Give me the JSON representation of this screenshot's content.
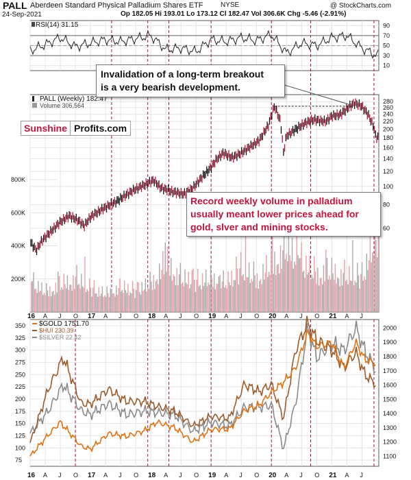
{
  "header": {
    "ticker": "PALL",
    "description": "Aberdeen Standard Physical Palladium Shares ETF",
    "exchange": "NYSE",
    "date": "24-Sep-2021",
    "ohlc": "Op 182.05 Hi 193.01 Lo 173.12 Cl 182.47 Vol 306.6K Chg -5.46 (-2.91%)",
    "source": "@ StockCharts.com"
  },
  "logo": {
    "part1": "Sunshine",
    "part2": "Profits.com",
    "part1_color": "#c0143c"
  },
  "annotations": [
    "Invalidation of a long-term breakout",
    "is a very bearish development.",
    "Record weekly volume in palladium",
    "usually meant lower prices ahead for",
    "gold, slver and mining stocks."
  ],
  "colors": {
    "event_line": "#9b1055",
    "price_up": "#111111",
    "price_down": "#c0143c",
    "vol_up": "#aaaaaa",
    "vol_down": "#e8a0a8",
    "gold": "#e07010",
    "hui": "#9a5a2a",
    "silver": "#8a8a8a"
  },
  "x_ticks": [
    "16",
    "A",
    "J",
    "O",
    "17",
    "A",
    "J",
    "O",
    "18",
    "A",
    "J",
    "O",
    "19",
    "A",
    "J",
    "O",
    "20",
    "A",
    "J",
    "O",
    "21",
    "A",
    "J"
  ],
  "x_ticks_bottom": [
    "16",
    "A",
    "J",
    "O",
    "17",
    "A",
    "J",
    "O",
    "18",
    "A",
    "J",
    "O",
    "19",
    "A",
    "J",
    "O",
    "20",
    "A",
    "J",
    "O",
    "21",
    "A",
    "J"
  ],
  "chart_data": [
    {
      "type": "line",
      "title": "RSI(14) 31.15",
      "ylim": [
        0,
        100
      ],
      "y_ticks": [
        "90",
        "70",
        "50",
        "30",
        "10"
      ],
      "grid": true,
      "x": [
        2016.0,
        2016.25,
        2016.5,
        2016.75,
        2017.0,
        2017.25,
        2017.5,
        2017.75,
        2018.0,
        2018.25,
        2018.5,
        2018.75,
        2019.0,
        2019.25,
        2019.5,
        2019.75,
        2020.0,
        2020.25,
        2020.5,
        2020.75,
        2021.0,
        2021.25,
        2021.5,
        2021.73
      ],
      "values": [
        40,
        52,
        66,
        48,
        55,
        62,
        58,
        64,
        70,
        42,
        45,
        38,
        62,
        58,
        66,
        60,
        72,
        35,
        55,
        50,
        66,
        70,
        45,
        31
      ],
      "reference_levels": [
        70,
        30
      ]
    },
    {
      "type": "line",
      "title": "PALL (Weekly) 182.47",
      "subtitle": "Volume 306,564",
      "y_ticks_price": [
        "280",
        "260",
        "240",
        "220",
        "200",
        "180",
        "160",
        "140",
        "120",
        "100",
        "80",
        "60"
      ],
      "y_ticks_volume": [
        "800K",
        "600K",
        "400K",
        "200K"
      ],
      "series": [
        {
          "name": "PALL (Weekly)",
          "x": [
            2016.0,
            2016.1,
            2016.2,
            2016.35,
            2016.5,
            2016.65,
            2016.8,
            2016.9,
            2017.0,
            2017.2,
            2017.45,
            2017.7,
            2017.9,
            2018.05,
            2018.15,
            2018.35,
            2018.55,
            2018.7,
            2018.85,
            2019.0,
            2019.1,
            2019.2,
            2019.35,
            2019.5,
            2019.65,
            2019.8,
            2019.95,
            2020.05,
            2020.15,
            2020.2,
            2020.25,
            2020.4,
            2020.55,
            2020.7,
            2020.9,
            2021.0,
            2021.15,
            2021.3,
            2021.38,
            2021.5,
            2021.6,
            2021.7,
            2021.73
          ],
          "values": [
            51,
            46,
            52,
            58,
            65,
            70,
            66,
            62,
            69,
            76,
            84,
            95,
            102,
            108,
            99,
            94,
            91,
            98,
            112,
            126,
            140,
            150,
            142,
            150,
            162,
            175,
            210,
            265,
            220,
            150,
            185,
            200,
            215,
            225,
            220,
            235,
            240,
            265,
            275,
            265,
            240,
            205,
            182
          ]
        },
        {
          "name": "Volume",
          "x": [
            2016.0,
            2016.25,
            2016.5,
            2016.75,
            2017.0,
            2017.25,
            2017.5,
            2017.75,
            2018.0,
            2018.25,
            2018.5,
            2018.75,
            2019.0,
            2019.25,
            2019.5,
            2019.75,
            2020.0,
            2020.25,
            2020.5,
            2020.75,
            2021.0,
            2021.25,
            2021.5,
            2021.7
          ],
          "values": [
            260000,
            180000,
            240000,
            300000,
            200000,
            160000,
            220000,
            180000,
            260000,
            440000,
            300000,
            260000,
            300000,
            260000,
            380000,
            300000,
            420000,
            580000,
            420000,
            340000,
            360000,
            320000,
            300000,
            640000
          ]
        }
      ],
      "events": [
        2017.35,
        2017.95,
        2018.3,
        2019.0,
        2020.0,
        2020.65,
        2021.7
      ]
    },
    {
      "type": "line",
      "series": [
        {
          "name": "$GOLD 1751.70",
          "x": [
            2016.0,
            2016.3,
            2016.5,
            2016.85,
            2017.0,
            2017.3,
            2017.6,
            2017.9,
            2018.1,
            2018.4,
            2018.7,
            2019.0,
            2019.3,
            2019.55,
            2019.8,
            2020.0,
            2020.2,
            2020.4,
            2020.6,
            2020.75,
            2021.0,
            2021.2,
            2021.4,
            2021.55,
            2021.73
          ],
          "values": [
            1100,
            1250,
            1340,
            1170,
            1150,
            1260,
            1240,
            1280,
            1340,
            1300,
            1200,
            1290,
            1290,
            1420,
            1460,
            1550,
            1620,
            1720,
            1970,
            1870,
            1900,
            1720,
            1900,
            1780,
            1751.7
          ]
        },
        {
          "name": "$HUI 230.39",
          "x": [
            2016.0,
            2016.3,
            2016.55,
            2016.85,
            2017.0,
            2017.3,
            2017.6,
            2017.9,
            2018.1,
            2018.4,
            2018.7,
            2019.0,
            2019.3,
            2019.55,
            2019.8,
            2020.0,
            2020.2,
            2020.4,
            2020.6,
            2020.75,
            2021.0,
            2021.2,
            2021.4,
            2021.55,
            2021.73
          ],
          "values": [
            110,
            220,
            285,
            190,
            190,
            220,
            195,
            195,
            185,
            175,
            145,
            165,
            160,
            230,
            215,
            230,
            160,
            300,
            355,
            320,
            300,
            265,
            295,
            250,
            230.39
          ]
        },
        {
          "name": "$SILVER 22.42",
          "x": [
            2016.0,
            2016.3,
            2016.55,
            2016.85,
            2017.0,
            2017.3,
            2017.6,
            2017.9,
            2018.1,
            2018.4,
            2018.7,
            2019.0,
            2019.3,
            2019.55,
            2019.8,
            2020.0,
            2020.2,
            2020.4,
            2020.6,
            2020.75,
            2021.0,
            2021.2,
            2021.4,
            2021.55,
            2021.73
          ],
          "values": [
            14,
            17,
            20.5,
            17,
            16.5,
            18,
            16.5,
            17,
            16.8,
            16.5,
            14.3,
            15.5,
            15,
            17.5,
            17.5,
            17.8,
            12,
            18,
            28,
            24,
            26,
            25,
            28,
            25,
            22.42
          ]
        }
      ],
      "y_ticks_left": [
        "350",
        "325",
        "300",
        "275",
        "250",
        "225",
        "200",
        "175",
        "150",
        "125",
        "100",
        "75"
      ],
      "y_ticks_right": [
        "2000",
        "1900",
        "1800",
        "1700",
        "1600",
        "1500",
        "1400",
        "1300",
        "1200",
        "1100"
      ],
      "events": [
        2016.75,
        2017.95,
        2018.3,
        2019.0,
        2020.0,
        2020.65,
        2021.7
      ]
    }
  ]
}
